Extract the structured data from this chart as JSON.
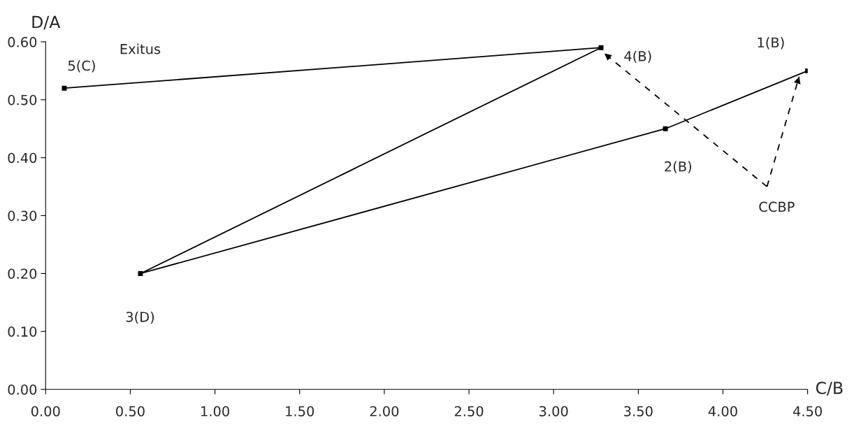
{
  "chart_data": {
    "type": "line",
    "xlabel": "C/B",
    "ylabel": "D/A",
    "marker": "square",
    "grid": false,
    "legend": false,
    "xlim": [
      0,
      4.5
    ],
    "ylim": [
      0,
      0.6
    ],
    "xticks": [
      {
        "value": 0,
        "label": "0.00"
      },
      {
        "value": 0.5,
        "label": "0.50"
      },
      {
        "value": 1,
        "label": "1.00"
      },
      {
        "value": 1.5,
        "label": "1.50"
      },
      {
        "value": 2,
        "label": "2.00"
      },
      {
        "value": 2.5,
        "label": "2.50"
      },
      {
        "value": 3,
        "label": "3.00"
      },
      {
        "value": 3.5,
        "label": "3.50"
      },
      {
        "value": 4,
        "label": "4.00"
      },
      {
        "value": 4.5,
        "label": "4.50"
      }
    ],
    "yticks": [
      {
        "value": 0,
        "label": "0.00"
      },
      {
        "value": 0.1,
        "label": "0.10"
      },
      {
        "value": 0.2,
        "label": "0.20"
      },
      {
        "value": 0.3,
        "label": "0.30"
      },
      {
        "value": 0.4,
        "label": "0.40"
      },
      {
        "value": 0.5,
        "label": "0.50"
      },
      {
        "value": 0.6,
        "label": "0.60"
      }
    ],
    "series": [
      {
        "color": "#000000",
        "x": [
          4.5,
          3.66,
          0.56,
          3.28,
          0.11
        ],
        "values": [
          0.55,
          0.45,
          0.2,
          0.59,
          0.52
        ],
        "line_style": "solid"
      },
      {
        "color": "#000000",
        "x": [
          4.26,
          3.3
        ],
        "values": [
          0.35,
          0.58
        ],
        "line_style": "dashed",
        "marker": "none"
      },
      {
        "color": "#000000",
        "x": [
          4.26,
          4.45
        ],
        "values": [
          0.35,
          0.54
        ],
        "line_style": "dashed",
        "marker": "none"
      }
    ],
    "annotations": [
      {
        "text": "1(B)",
        "x": 4.5,
        "y": 0.55
      },
      "2(B)",
      "3(D)",
      {
        "text": "4(B)",
        "x": 3.28,
        "y": 0.59
      },
      {
        "text": "5(C)",
        "x": 0.11,
        "y": 0.52
      },
      "Exitus",
      {
        "text": "CCBP",
        "x": 4.26,
        "y": 0.35
      }
    ]
  }
}
